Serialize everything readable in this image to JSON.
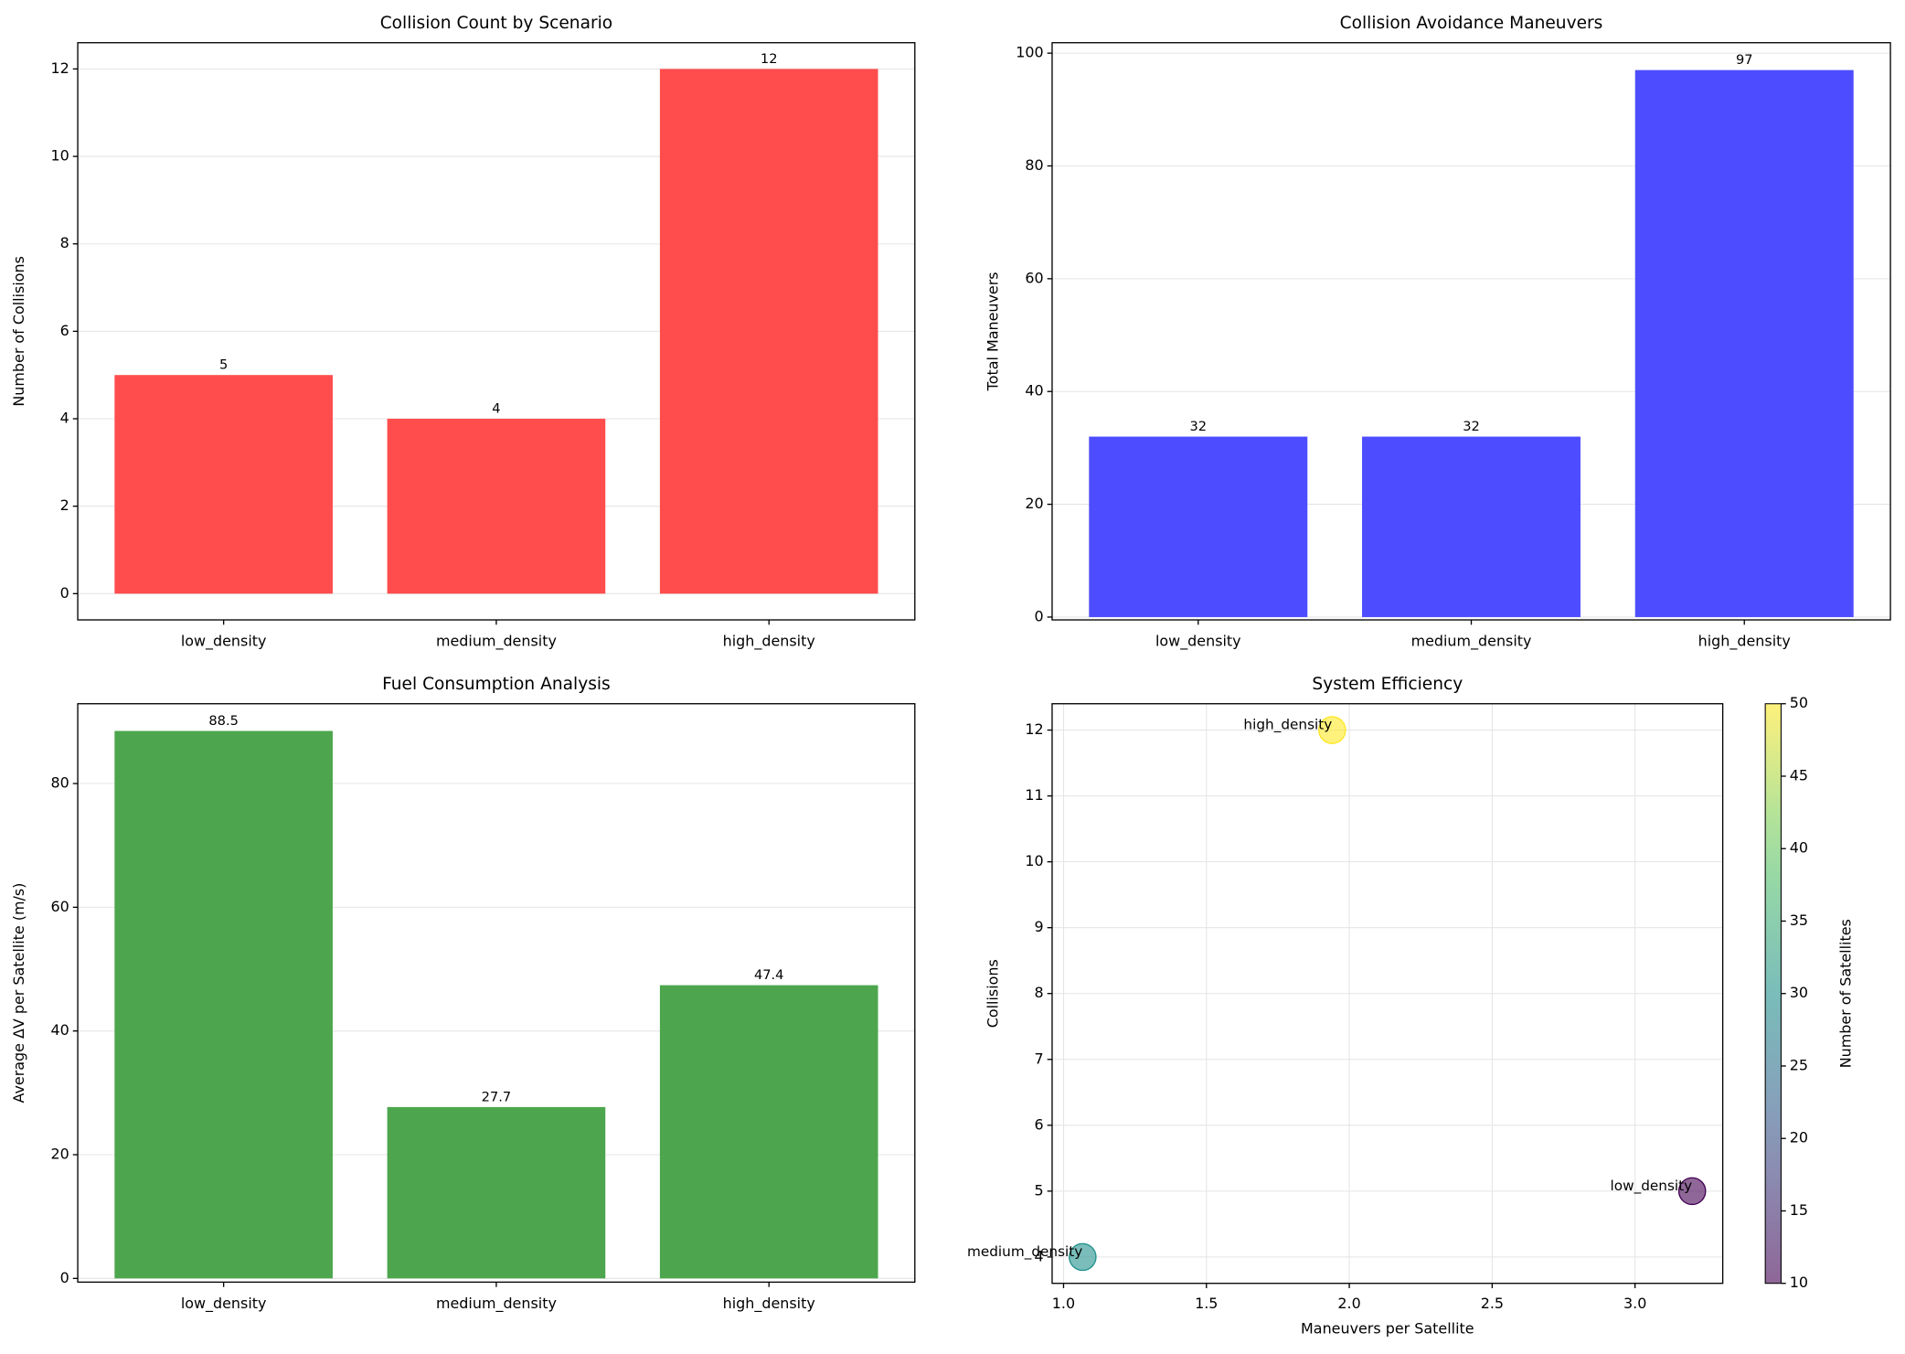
{
  "chart_data": [
    {
      "type": "bar",
      "title": "Collision Count by Scenario",
      "ylabel": "Number of Collisions",
      "categories": [
        "low_density",
        "medium_density",
        "high_density"
      ],
      "values": [
        5,
        4,
        12
      ],
      "color": "#ff4d4d",
      "ylim": [
        -0.6,
        12.6
      ],
      "yticks": [
        0,
        2,
        4,
        6,
        8,
        10,
        12
      ],
      "grid": true
    },
    {
      "type": "bar",
      "title": "Collision Avoidance Maneuvers",
      "ylabel": "Total Maneuvers",
      "categories": [
        "low_density",
        "medium_density",
        "high_density"
      ],
      "values": [
        32,
        32,
        97
      ],
      "color": "#4d4dff",
      "ylim": [
        -0.5,
        101.85
      ],
      "yticks": [
        0,
        20,
        40,
        60,
        80,
        100
      ],
      "grid": true
    },
    {
      "type": "bar",
      "title": "Fuel Consumption Analysis",
      "ylabel": "Average ΔV per Satellite (m/s)",
      "categories": [
        "low_density",
        "medium_density",
        "high_density"
      ],
      "values": [
        88.5,
        27.7,
        47.4
      ],
      "color": "#4da64d",
      "ylim": [
        -0.6,
        92.9
      ],
      "yticks": [
        0,
        20,
        40,
        60,
        80
      ],
      "grid": true
    },
    {
      "type": "scatter",
      "title": "System Efficiency",
      "xlabel": "Maneuvers per Satellite",
      "ylabel": "Collisions",
      "categories": [
        "low_density",
        "medium_density",
        "high_density"
      ],
      "x": [
        3.2,
        1.0667,
        1.94
      ],
      "values": [
        5,
        4,
        12
      ],
      "color_values": [
        10,
        30,
        50
      ],
      "colormap": "viridis",
      "xlim": [
        0.96,
        3.307
      ],
      "ylim": [
        3.6,
        12.4
      ],
      "xticks": [
        {
          "value": 1,
          "label": "1.0"
        },
        {
          "value": 1.5,
          "label": "1.5"
        },
        {
          "value": 2,
          "label": "2.0"
        },
        {
          "value": 2.5,
          "label": "2.5"
        },
        {
          "value": 3,
          "label": "3.0"
        }
      ],
      "yticks": [
        4,
        5,
        6,
        7,
        8,
        9,
        10,
        11,
        12
      ],
      "grid": true,
      "colorbar": {
        "label": "Number of Satellites",
        "lim": [
          10,
          50
        ],
        "ticks": [
          10,
          15,
          20,
          25,
          30,
          35,
          40,
          45,
          50
        ]
      }
    }
  ]
}
